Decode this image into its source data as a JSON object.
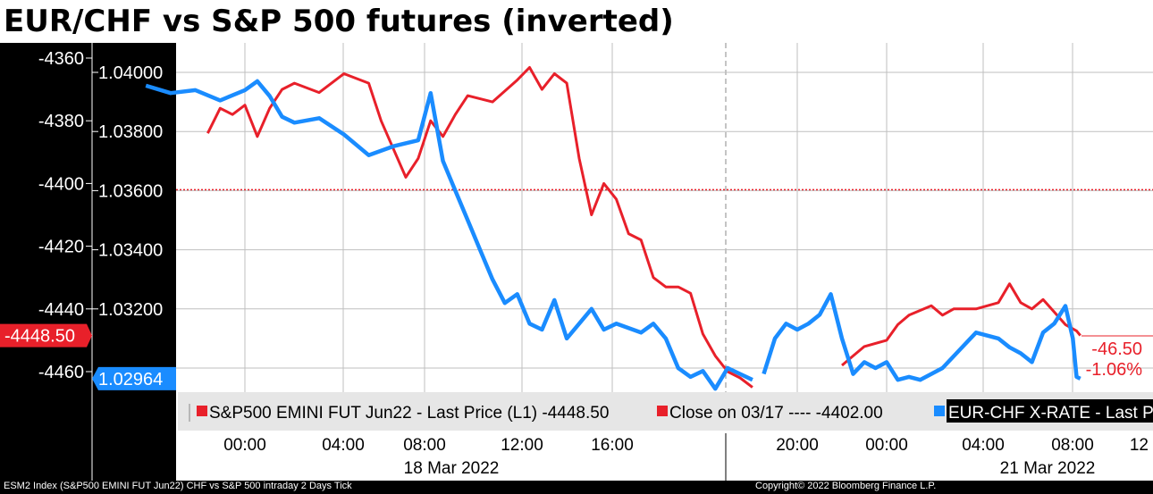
{
  "title": "EUR/CHF vs S&P 500 futures (inverted)",
  "footer_left": "ESM2 Index (S&P500 EMINI FUT Jun22) CHF vs S&P 500 intraday 2 Days Tick",
  "footer_right": "Copyright© 2022 Bloomberg Finance L.P.",
  "colors": {
    "sp500": "#e8202a",
    "eurchf": "#1a8cff",
    "background": "#ffffff",
    "axis_bg": "#000000"
  },
  "chart_data": {
    "type": "line",
    "title": "EUR/CHF vs S&P 500 futures (inverted)",
    "left_axis": {
      "ticks": [
        "-4360",
        "-4380",
        "-4400",
        "-4420",
        "-4440",
        "-4460"
      ],
      "range": [
        -4471,
        -4354
      ],
      "inverted_series": "S&P500 EMINI FUT Jun22"
    },
    "right_axis": {
      "ticks": [
        "1.04000",
        "1.03800",
        "1.03600",
        "1.03400",
        "1.03200",
        "1.03000"
      ],
      "range": [
        1.029,
        1.0406
      ]
    },
    "x_ticks": [
      "00:00",
      "04:00",
      "08:00",
      "12:00",
      "16:00",
      "20:00",
      "00:00",
      "04:00",
      "08:00",
      "12"
    ],
    "x_dates": [
      "18 Mar 2022",
      "21 Mar 2022"
    ],
    "legend": [
      {
        "name": "S&P500 EMINI FUT Jun22 - Last Price (L1) -4448.50",
        "color": "#e8202a"
      },
      {
        "name": "Close on 03/17 ---- -4402.00",
        "color": "#e8202a"
      },
      {
        "name": "EUR-CHF X-RATE - Last P",
        "color": "#1a8cff"
      }
    ],
    "current_labels": {
      "sp500_last": "-4448.50",
      "eurchf_last": "1.02964",
      "sp500_change": "-46.50",
      "eurchf_change": "-1.06%"
    },
    "reference_line": {
      "name": "Close on 03/17",
      "value": -4402.0
    },
    "series": [
      {
        "name": "S&P500 EMINI FUT Jun22",
        "axis": "left",
        "segments": [
          [
            [
              "2022-03-17 22:30",
              -4384
            ],
            [
              "2022-03-17 23:00",
              -4376
            ],
            [
              "2022-03-17 23:30",
              -4378
            ],
            [
              "2022-03-18 00:00",
              -4375
            ],
            [
              "2022-03-18 00:30",
              -4385
            ],
            [
              "2022-03-18 01:00",
              -4376
            ],
            [
              "2022-03-18 01:30",
              -4370
            ],
            [
              "2022-03-18 02:00",
              -4368
            ],
            [
              "2022-03-18 03:00",
              -4371
            ],
            [
              "2022-03-18 04:00",
              -4365
            ],
            [
              "2022-03-18 05:00",
              -4368
            ],
            [
              "2022-03-18 05:30",
              -4380
            ],
            [
              "2022-03-18 06:00",
              -4389
            ],
            [
              "2022-03-18 06:30",
              -4398
            ],
            [
              "2022-03-18 07:00",
              -4392
            ],
            [
              "2022-03-18 07:30",
              -4380
            ],
            [
              "2022-03-18 08:00",
              -4385
            ],
            [
              "2022-03-18 08:30",
              -4378
            ],
            [
              "2022-03-18 09:00",
              -4372
            ],
            [
              "2022-03-18 10:00",
              -4374
            ],
            [
              "2022-03-18 11:00",
              -4367
            ],
            [
              "2022-03-18 11:30",
              -4363
            ],
            [
              "2022-03-18 12:00",
              -4370
            ],
            [
              "2022-03-18 12:30",
              -4365
            ],
            [
              "2022-03-18 13:00",
              -4368
            ],
            [
              "2022-03-18 13:30",
              -4392
            ],
            [
              "2022-03-18 14:00",
              -4410
            ],
            [
              "2022-03-18 14:30",
              -4400
            ],
            [
              "2022-03-18 15:00",
              -4405
            ],
            [
              "2022-03-18 15:30",
              -4416
            ],
            [
              "2022-03-18 16:00",
              -4418
            ],
            [
              "2022-03-18 16:30",
              -4430
            ],
            [
              "2022-03-18 17:00",
              -4433
            ],
            [
              "2022-03-18 17:30",
              -4433
            ],
            [
              "2022-03-18 18:00",
              -4435
            ],
            [
              "2022-03-18 18:30",
              -4448
            ],
            [
              "2022-03-18 19:00",
              -4455
            ],
            [
              "2022-03-18 19:30",
              -4460
            ],
            [
              "2022-03-18 20:00",
              -4462
            ],
            [
              "2022-03-18 20:30",
              -4465
            ]
          ],
          [
            [
              "2022-03-20 22:00",
              -4458
            ],
            [
              "2022-03-20 22:30",
              -4455
            ],
            [
              "2022-03-20 23:00",
              -4452
            ],
            [
              "2022-03-21 00:00",
              -4450
            ],
            [
              "2022-03-21 00:30",
              -4445
            ],
            [
              "2022-03-21 01:00",
              -4442
            ],
            [
              "2022-03-21 02:00",
              -4439
            ],
            [
              "2022-03-21 02:30",
              -4442
            ],
            [
              "2022-03-21 03:00",
              -4440
            ],
            [
              "2022-03-21 04:00",
              -4440
            ],
            [
              "2022-03-21 05:00",
              -4438
            ],
            [
              "2022-03-21 05:30",
              -4432
            ],
            [
              "2022-03-21 06:00",
              -4438
            ],
            [
              "2022-03-21 06:30",
              -4440
            ],
            [
              "2022-03-21 07:00",
              -4437
            ],
            [
              "2022-03-21 07:30",
              -4441
            ],
            [
              "2022-03-21 08:00",
              -4445
            ],
            [
              "2022-03-21 08:30",
              -4447
            ],
            [
              "2022-03-21 08:40",
              -4448.5
            ]
          ]
        ]
      },
      {
        "name": "EUR-CHF X-RATE",
        "axis": "right",
        "segments": [
          [
            [
              "2022-03-17 20:00",
              1.03955
            ],
            [
              "2022-03-17 21:00",
              1.0393
            ],
            [
              "2022-03-17 22:00",
              1.0394
            ],
            [
              "2022-03-17 23:00",
              1.03905
            ],
            [
              "2022-03-18 00:00",
              1.0394
            ],
            [
              "2022-03-18 00:30",
              1.0397
            ],
            [
              "2022-03-18 01:00",
              1.0392
            ],
            [
              "2022-03-18 01:30",
              1.0385
            ],
            [
              "2022-03-18 02:00",
              1.0383
            ],
            [
              "2022-03-18 03:00",
              1.03845
            ],
            [
              "2022-03-18 04:00",
              1.0379
            ],
            [
              "2022-03-18 05:00",
              1.0372
            ],
            [
              "2022-03-18 06:00",
              1.0375
            ],
            [
              "2022-03-18 07:00",
              1.0377
            ],
            [
              "2022-03-18 07:30",
              1.0393
            ],
            [
              "2022-03-18 08:00",
              1.037
            ],
            [
              "2022-03-18 08:30",
              1.036
            ],
            [
              "2022-03-18 09:00",
              1.035
            ],
            [
              "2022-03-18 09:30",
              1.034
            ],
            [
              "2022-03-18 10:00",
              1.033
            ],
            [
              "2022-03-18 10:30",
              1.0322
            ],
            [
              "2022-03-18 11:00",
              1.0325
            ],
            [
              "2022-03-18 11:30",
              1.0315
            ],
            [
              "2022-03-18 12:00",
              1.0313
            ],
            [
              "2022-03-18 12:30",
              1.0323
            ],
            [
              "2022-03-18 13:00",
              1.031
            ],
            [
              "2022-03-18 14:00",
              1.032
            ],
            [
              "2022-03-18 14:30",
              1.0313
            ],
            [
              "2022-03-18 15:00",
              1.0315
            ],
            [
              "2022-03-18 16:00",
              1.0312
            ],
            [
              "2022-03-18 16:30",
              1.0315
            ],
            [
              "2022-03-18 17:00",
              1.031
            ],
            [
              "2022-03-18 17:30",
              1.03
            ],
            [
              "2022-03-18 18:00",
              1.0297
            ],
            [
              "2022-03-18 18:30",
              1.0299
            ],
            [
              "2022-03-18 19:00",
              1.0293
            ],
            [
              "2022-03-18 19:30",
              1.03
            ],
            [
              "2022-03-18 20:00",
              1.0298
            ],
            [
              "2022-03-18 20:30",
              1.0296
            ]
          ],
          [
            [
              "2022-03-20 18:30",
              1.0298
            ],
            [
              "2022-03-20 19:00",
              1.031
            ],
            [
              "2022-03-20 19:30",
              1.0315
            ],
            [
              "2022-03-20 20:00",
              1.0313
            ],
            [
              "2022-03-20 20:30",
              1.0315
            ],
            [
              "2022-03-20 21:00",
              1.0318
            ],
            [
              "2022-03-20 21:30",
              1.0325
            ],
            [
              "2022-03-20 22:00",
              1.031
            ],
            [
              "2022-03-20 22:30",
              1.0298
            ],
            [
              "2022-03-20 23:00",
              1.0302
            ],
            [
              "2022-03-20 23:30",
              1.03
            ],
            [
              "2022-03-21 00:00",
              1.0302
            ],
            [
              "2022-03-21 00:30",
              1.0296
            ],
            [
              "2022-03-21 01:00",
              1.0297
            ],
            [
              "2022-03-21 01:30",
              1.0296
            ],
            [
              "2022-03-21 02:30",
              1.03
            ],
            [
              "2022-03-21 03:30",
              1.0308
            ],
            [
              "2022-03-21 04:00",
              1.0312
            ],
            [
              "2022-03-21 05:00",
              1.031
            ],
            [
              "2022-03-21 05:30",
              1.0307
            ],
            [
              "2022-03-21 06:00",
              1.0305
            ],
            [
              "2022-03-21 06:30",
              1.0302
            ],
            [
              "2022-03-21 07:00",
              1.0312
            ],
            [
              "2022-03-21 07:30",
              1.0315
            ],
            [
              "2022-03-21 08:00",
              1.0321
            ],
            [
              "2022-03-21 08:20",
              1.031
            ],
            [
              "2022-03-21 08:30",
              1.0297
            ],
            [
              "2022-03-21 08:40",
              1.02964
            ]
          ]
        ]
      }
    ]
  }
}
